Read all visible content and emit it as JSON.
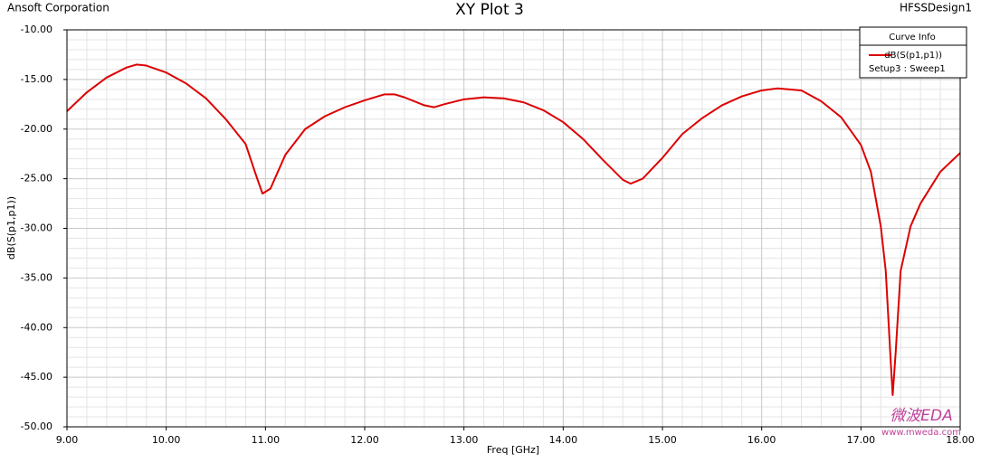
{
  "chart_data": {
    "type": "line",
    "title": "XY Plot 3",
    "company": "Ansoft Corporation",
    "design": "HFSSDesign1",
    "x_label": "Freq [GHz]",
    "y_label": "dB(S(p1,p1))",
    "legend_title": "Curve Info",
    "legend_setup": "Setup3 : Sweep1",
    "watermark": "微波EDA",
    "watermark_url": "www.mweda.com",
    "legend": "upper-right",
    "grid": true,
    "xlim": [
      9,
      18
    ],
    "ylim": [
      -50,
      -10
    ],
    "xticks": [
      {
        "value": 9,
        "label": "9.00"
      },
      {
        "value": 10,
        "label": "10.00"
      },
      {
        "value": 11,
        "label": "11.00"
      },
      {
        "value": 12,
        "label": "12.00"
      },
      {
        "value": 13,
        "label": "13.00"
      },
      {
        "value": 14,
        "label": "14.00"
      },
      {
        "value": 15,
        "label": "15.00"
      },
      {
        "value": 16,
        "label": "16.00"
      },
      {
        "value": 17,
        "label": "17.00"
      },
      {
        "value": 18,
        "label": "18.00"
      }
    ],
    "yticks": [
      {
        "value": -10,
        "label": "-10.00"
      },
      {
        "value": -15,
        "label": "-15.00"
      },
      {
        "value": -20,
        "label": "-20.00"
      },
      {
        "value": -25,
        "label": "-25.00"
      },
      {
        "value": -30,
        "label": "-30.00"
      },
      {
        "value": -35,
        "label": "-35.00"
      },
      {
        "value": -40,
        "label": "-40.00"
      },
      {
        "value": -45,
        "label": "-45.00"
      },
      {
        "value": -50,
        "label": "-50.00"
      }
    ],
    "x": [
      9.0,
      9.2,
      9.4,
      9.6,
      9.7,
      9.8,
      10.0,
      10.2,
      10.4,
      10.6,
      10.8,
      10.9,
      10.97,
      11.05,
      11.2,
      11.4,
      11.6,
      11.8,
      12.0,
      12.2,
      12.3,
      12.4,
      12.6,
      12.7,
      12.8,
      13.0,
      13.2,
      13.4,
      13.6,
      13.8,
      14.0,
      14.2,
      14.4,
      14.6,
      14.68,
      14.8,
      15.0,
      15.2,
      15.4,
      15.6,
      15.8,
      16.0,
      16.16,
      16.4,
      16.6,
      16.8,
      17.0,
      17.1,
      17.2,
      17.25,
      17.3,
      17.32,
      17.35,
      17.4,
      17.5,
      17.6,
      17.8,
      18.0
    ],
    "series": [
      {
        "name": "dB(S(p1,p1))",
        "color": "#dd0000",
        "values": [
          -18.2,
          -16.3,
          -14.8,
          -13.8,
          -13.5,
          -13.6,
          -14.3,
          -15.4,
          -16.9,
          -19.0,
          -21.5,
          -24.5,
          -26.5,
          -26.0,
          -22.6,
          -20.0,
          -18.7,
          -17.8,
          -17.1,
          -16.5,
          -16.5,
          -16.8,
          -17.6,
          -17.8,
          -17.5,
          -17.0,
          -16.8,
          -16.9,
          -17.3,
          -18.1,
          -19.3,
          -21.0,
          -23.1,
          -25.1,
          -25.5,
          -25.0,
          -22.9,
          -20.5,
          -18.9,
          -17.6,
          -16.7,
          -16.1,
          -15.9,
          -16.1,
          -17.2,
          -18.8,
          -21.6,
          -24.3,
          -29.8,
          -34.3,
          -43.4,
          -46.8,
          -42.5,
          -34.3,
          -29.8,
          -27.5,
          -24.3,
          -22.4
        ]
      }
    ]
  }
}
